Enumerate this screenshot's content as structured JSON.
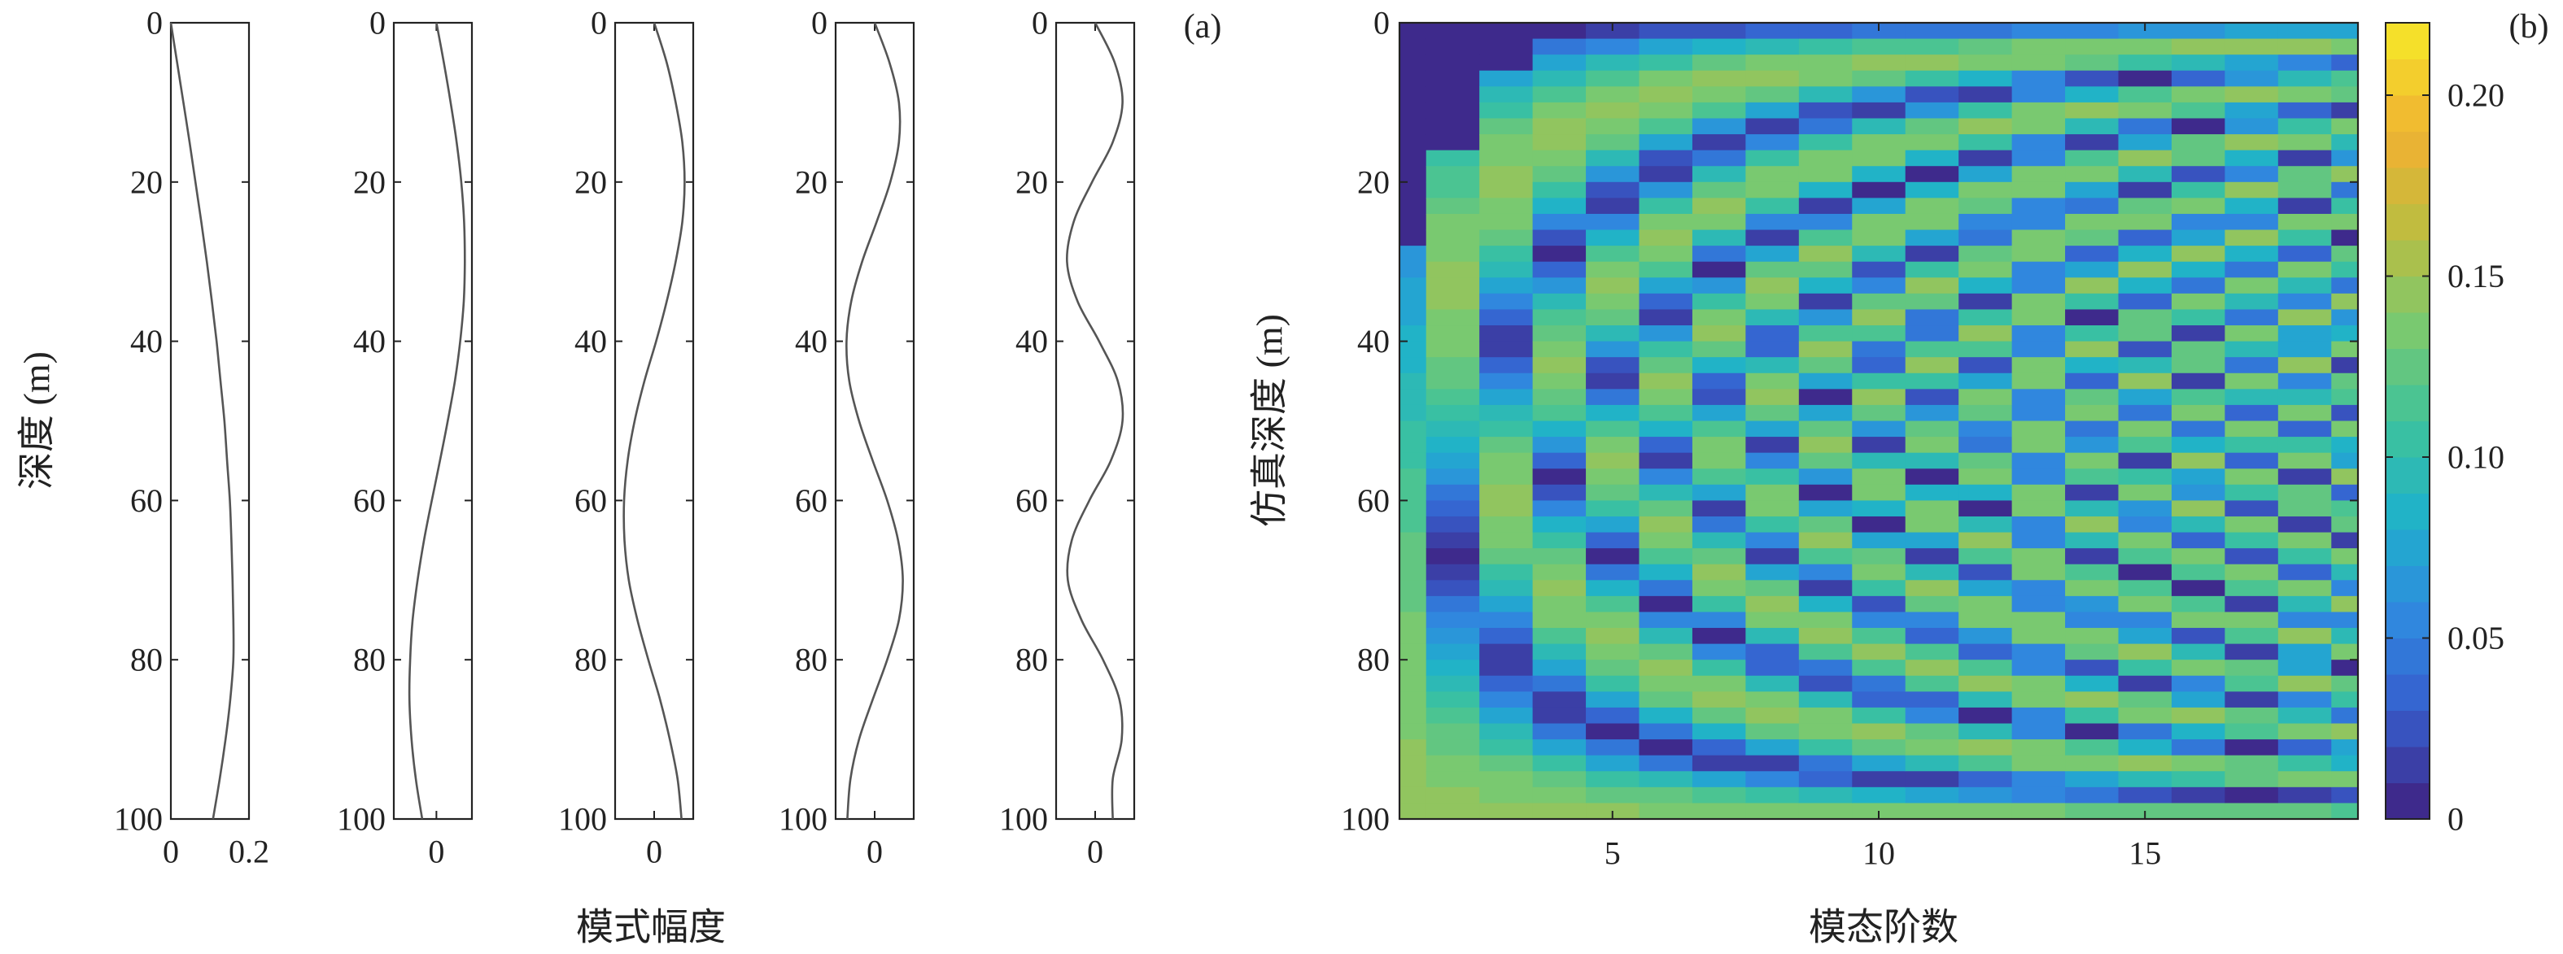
{
  "panel_tags": {
    "a": "(a)",
    "b": "(b)"
  },
  "chart_data": [
    {
      "id": "mode-shape-panel-1",
      "type": "line",
      "ylabel": "深度 (m)",
      "xlabel": "",
      "ylim": [
        0,
        100
      ],
      "y_reversed": true,
      "xlim": [
        0,
        0.2
      ],
      "xticks": [
        0,
        0.2
      ],
      "xtick_labels": [
        "0",
        "0.2"
      ],
      "yticks": [
        0,
        20,
        40,
        60,
        80,
        100
      ],
      "ytick_labels": [
        "0",
        "20",
        "40",
        "60",
        "80",
        "100"
      ],
      "line_color": "#555555",
      "series": [
        {
          "x": [
            0.0,
            0.016,
            0.032,
            0.048,
            0.063,
            0.078,
            0.092,
            0.105,
            0.117,
            0.127,
            0.137,
            0.144,
            0.151,
            0.155,
            0.158,
            0.16,
            0.16,
            0.152,
            0.14,
            0.125,
            0.108
          ],
          "y": [
            0,
            5,
            10,
            15,
            20,
            25,
            30,
            35,
            40,
            45,
            50,
            55,
            60,
            65,
            70,
            75,
            80,
            85,
            90,
            95,
            100
          ]
        }
      ]
    },
    {
      "id": "mode-shape-panel-2",
      "type": "line",
      "ylim": [
        0,
        100
      ],
      "y_reversed": true,
      "xlim": [
        -0.12,
        0.1
      ],
      "xticks": [
        0
      ],
      "xtick_labels": [
        "0"
      ],
      "yticks": [
        0,
        20,
        40,
        60,
        80,
        100
      ],
      "ytick_labels": [
        "0",
        "20",
        "40",
        "60",
        "80",
        "100"
      ],
      "line_color": "#555555",
      "series": [
        {
          "x": [
            0.0,
            0.021,
            0.04,
            0.057,
            0.07,
            0.078,
            0.08,
            0.077,
            0.067,
            0.052,
            0.032,
            0.01,
            -0.013,
            -0.035,
            -0.053,
            -0.067,
            -0.074,
            -0.076,
            -0.07,
            -0.058,
            -0.04
          ],
          "y": [
            0,
            5,
            10,
            15,
            20,
            25,
            30,
            35,
            40,
            45,
            50,
            55,
            60,
            65,
            70,
            75,
            80,
            85,
            90,
            95,
            100
          ]
        }
      ]
    },
    {
      "id": "mode-shape-panel-3",
      "type": "line",
      "ylim": [
        0,
        100
      ],
      "y_reversed": true,
      "xlim": [
        -0.1,
        0.1
      ],
      "xticks": [
        0
      ],
      "xtick_labels": [
        "0"
      ],
      "yticks": [
        0,
        20,
        40,
        60,
        80,
        100
      ],
      "ytick_labels": [
        "0",
        "20",
        "40",
        "60",
        "80",
        "100"
      ],
      "line_color": "#555555",
      "series": [
        {
          "x": [
            0.0,
            0.032,
            0.055,
            0.072,
            0.078,
            0.072,
            0.055,
            0.032,
            0.005,
            -0.025,
            -0.05,
            -0.068,
            -0.077,
            -0.076,
            -0.065,
            -0.043,
            -0.015,
            0.015,
            0.04,
            0.06,
            0.07
          ],
          "y": [
            0,
            5,
            10,
            15,
            20,
            25,
            30,
            35,
            40,
            45,
            50,
            55,
            60,
            65,
            70,
            75,
            80,
            85,
            90,
            95,
            100
          ]
        }
      ]
    },
    {
      "id": "mode-shape-panel-4",
      "type": "line",
      "ylim": [
        0,
        100
      ],
      "y_reversed": true,
      "xlim": [
        -0.1,
        0.1
      ],
      "xticks": [
        0
      ],
      "xtick_labels": [
        "0"
      ],
      "yticks": [
        0,
        20,
        40,
        60,
        80,
        100
      ],
      "ytick_labels": [
        "0",
        "20",
        "40",
        "60",
        "80",
        "100"
      ],
      "line_color": "#555555",
      "series": [
        {
          "x": [
            0.0,
            0.038,
            0.062,
            0.062,
            0.04,
            0.005,
            -0.032,
            -0.06,
            -0.072,
            -0.065,
            -0.04,
            -0.005,
            0.032,
            0.06,
            0.072,
            0.062,
            0.032,
            -0.005,
            -0.04,
            -0.062,
            -0.07
          ],
          "y": [
            0,
            5,
            10,
            15,
            20,
            25,
            30,
            35,
            40,
            45,
            50,
            55,
            60,
            65,
            70,
            75,
            80,
            85,
            90,
            95,
            100
          ]
        }
      ]
    },
    {
      "id": "mode-shape-panel-5",
      "type": "line",
      "ylim": [
        0,
        100
      ],
      "y_reversed": true,
      "xlim": [
        -0.1,
        0.1
      ],
      "xticks": [
        0
      ],
      "xtick_labels": [
        "0"
      ],
      "yticks": [
        0,
        20,
        40,
        60,
        80,
        100
      ],
      "ytick_labels": [
        "0",
        "20",
        "40",
        "60",
        "80",
        "100"
      ],
      "line_color": "#555555",
      "series": [
        {
          "x": [
            0.0,
            0.05,
            0.07,
            0.045,
            -0.008,
            -0.055,
            -0.072,
            -0.045,
            0.01,
            0.058,
            0.07,
            0.04,
            -0.015,
            -0.06,
            -0.07,
            -0.035,
            0.02,
            0.062,
            0.068,
            0.045,
            0.045
          ],
          "y": [
            0,
            5,
            10,
            15,
            20,
            25,
            30,
            35,
            40,
            45,
            50,
            55,
            60,
            65,
            70,
            75,
            80,
            85,
            90,
            95,
            100
          ]
        }
      ]
    },
    {
      "id": "shared-xlabel-a",
      "type": "line",
      "xlabel": "模式幅度"
    },
    {
      "id": "mode-magnitude-heatmap",
      "type": "heatmap",
      "xlabel": "模态阶数",
      "ylabel": "仿真深度 (m)",
      "xlim": [
        1,
        19
      ],
      "ylim": [
        0,
        100
      ],
      "y_reversed": true,
      "xticks": [
        5,
        10,
        15
      ],
      "xtick_labels": [
        "5",
        "10",
        "15"
      ],
      "yticks": [
        0,
        20,
        40,
        60,
        80,
        100
      ],
      "ytick_labels": [
        "0",
        "20",
        "40",
        "60",
        "80",
        "100"
      ],
      "mode_orders": [
        1,
        2,
        3,
        4,
        5,
        6,
        7,
        8,
        9,
        10,
        11,
        12,
        13,
        14,
        15,
        16,
        17,
        18,
        19
      ],
      "depth_bins_m": 2,
      "value_formula": "|sqrt(2/H)·sin((n−0.5)·π·z/H)| with H=100 m; cells masked to the lower bound where the mode is evanescent near the surface",
      "colorbar": {
        "range": [
          0,
          0.22
        ],
        "ticks": [
          0,
          0.05,
          0.1,
          0.15,
          0.2
        ],
        "tick_labels": [
          "0",
          "0.05",
          "0.10",
          "0.15",
          "0.20"
        ],
        "levels": 22,
        "colormap": [
          "#3e2a8c",
          "#3660cf",
          "#2f8be0",
          "#1fb2c9",
          "#3fc39a",
          "#7cc96e",
          "#bcbd40",
          "#f0b132",
          "#f5e02a"
        ]
      }
    }
  ]
}
